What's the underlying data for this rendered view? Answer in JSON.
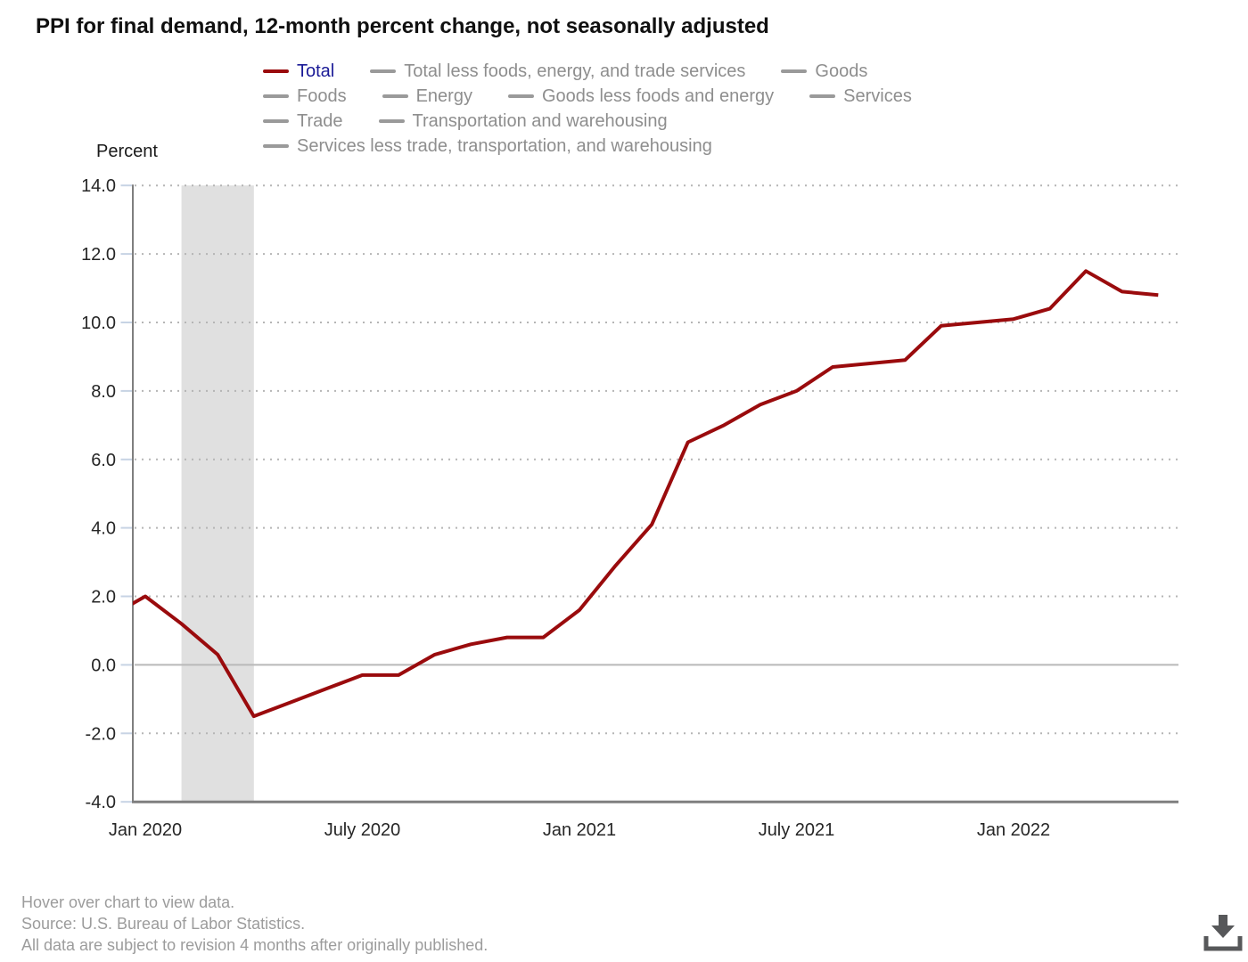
{
  "title": "PPI for final demand, 12-month percent change, not seasonally adjusted",
  "legend": {
    "active_color": "#9a0b0d",
    "active_text_color": "#1a1a96",
    "inactive_color": "#9a9a9a",
    "inactive_text_color": "#8e8e8e",
    "rows": [
      [
        {
          "label": "Total",
          "active": true
        },
        {
          "label": "Total less foods, energy, and trade services",
          "active": false
        },
        {
          "label": "Goods",
          "active": false
        }
      ],
      [
        {
          "label": "Foods",
          "active": false
        },
        {
          "label": "Energy",
          "active": false
        },
        {
          "label": "Goods less foods and energy",
          "active": false
        },
        {
          "label": "Services",
          "active": false
        }
      ],
      [
        {
          "label": "Trade",
          "active": false
        },
        {
          "label": "Transportation and warehousing",
          "active": false
        }
      ],
      [
        {
          "label": "Services less trade, transportation, and warehousing",
          "active": false
        }
      ]
    ]
  },
  "chart_data": {
    "type": "line",
    "title": "PPI for final demand, 12-month percent change, not seasonally adjusted",
    "ylabel": "Percent",
    "xlabel": "",
    "ylim": [
      -4.0,
      14.0
    ],
    "ytick_values": [
      14,
      12,
      10,
      8,
      6,
      4,
      2,
      0,
      -2,
      -4
    ],
    "ytick_labels": [
      "14.0",
      "12.0",
      "10.0",
      "8.0",
      "6.0",
      "4.0",
      "2.0",
      "0.0",
      "-2.0",
      "-4.0"
    ],
    "grid": "dotted horizontal",
    "grid_color": "#b5b5b5",
    "zero_line_color": "#b9b9b9",
    "axis_color": "#7f7f7f",
    "tick_color": "#c7d3e4",
    "label_color": "#262626",
    "x": [
      "Dec 2019",
      "Jan 2020",
      "Feb 2020",
      "Mar 2020",
      "Apr 2020",
      "May 2020",
      "Jun 2020",
      "Jul 2020",
      "Aug 2020",
      "Sep 2020",
      "Oct 2020",
      "Nov 2020",
      "Dec 2020",
      "Jan 2021",
      "Feb 2021",
      "Mar 2021",
      "Apr 2021",
      "May 2021",
      "Jun 2021",
      "Jul 2021",
      "Aug 2021",
      "Sep 2021",
      "Oct 2021",
      "Nov 2021",
      "Dec 2021",
      "Jan 2022",
      "Feb 2022",
      "Mar 2022",
      "Apr 2022",
      "May 2022"
    ],
    "xtick_labels": [
      "Jan 2020",
      "July 2020",
      "Jan 2021",
      "July 2021",
      "Jan 2022"
    ],
    "xtick_indices": [
      1,
      7,
      13,
      19,
      25
    ],
    "series": [
      {
        "name": "Total",
        "color": "#9a0b0d",
        "values": [
          1.4,
          2.0,
          1.2,
          0.3,
          -1.5,
          -1.1,
          -0.7,
          -0.3,
          -0.3,
          0.3,
          0.6,
          0.8,
          0.8,
          1.6,
          2.9,
          4.1,
          6.5,
          7.0,
          7.6,
          8.0,
          8.7,
          8.8,
          8.9,
          9.9,
          10.0,
          10.1,
          10.4,
          11.5,
          10.9,
          10.8
        ]
      }
    ],
    "recession_band": {
      "start": "Feb 2020",
      "end": "Apr 2020",
      "start_index": 2,
      "end_index": 4,
      "color": "#e0e0e0"
    },
    "legend_position": "top"
  },
  "footer": {
    "lines": [
      "Hover over chart to view data.",
      "Source: U.S. Bureau of Labor Statistics.",
      "All data are subject to revision 4 months after originally published."
    ]
  },
  "icons": {
    "download": "arrow-down-into-tray"
  }
}
